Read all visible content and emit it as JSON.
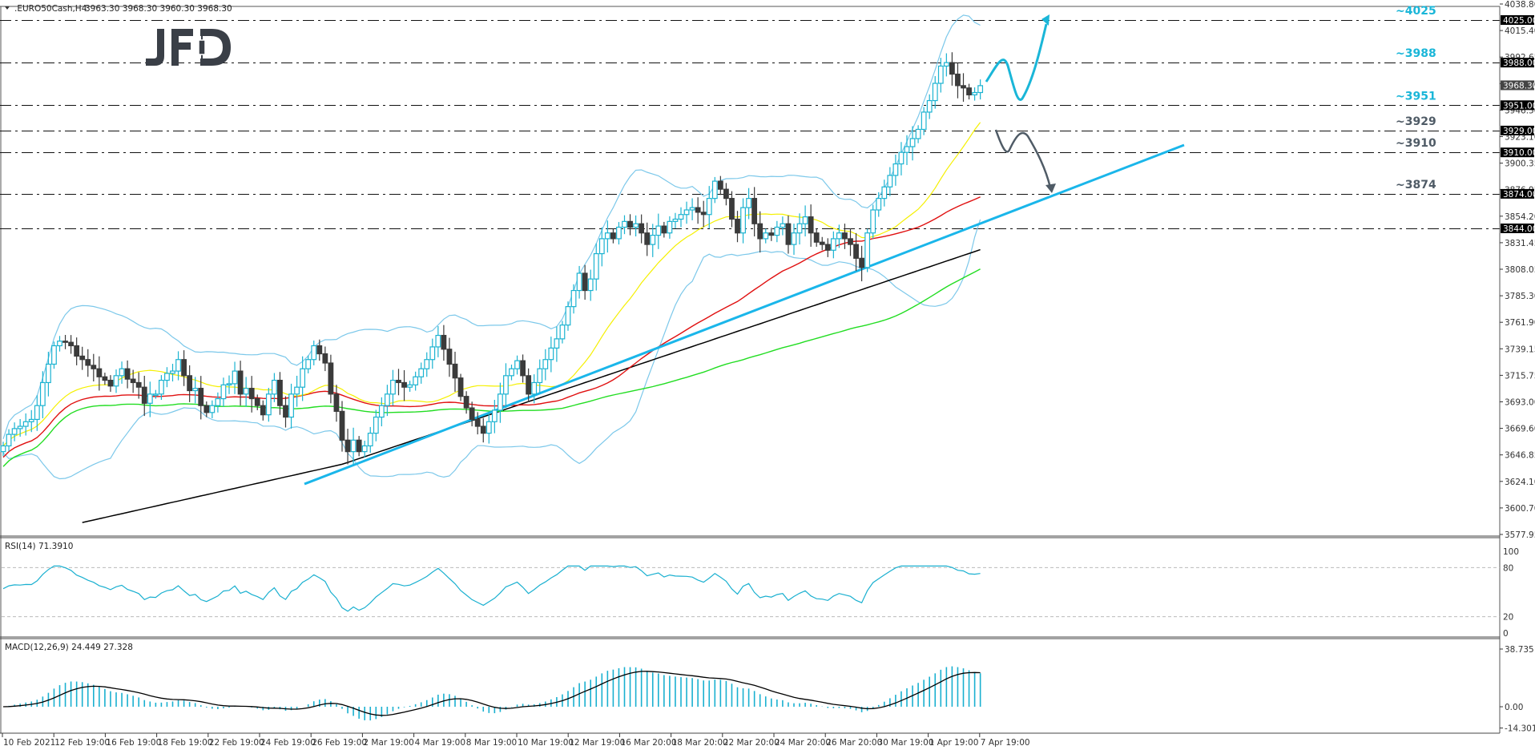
{
  "header": {
    "symbol": ".EURO50Cash,H4",
    "ohlc": "3963.30 3968.30 3960.30 3968.30"
  },
  "logo": "JFD",
  "colors": {
    "bull": "#1bb3d1",
    "bear": "#3b3b3b",
    "ma_fast": "#f5f000",
    "ma_mid": "#e01010",
    "ma_slow": "#22dd22",
    "ma_long": "#000000",
    "bollinger": "#7cc8ea",
    "trendline": "#1ab6ea",
    "bull_scenario": "#1ab6d8",
    "bear_scenario": "#4f5b66",
    "level_bull_text": "#1ab6d8",
    "level_bear_text": "#4f5b66",
    "rsi": "#1ab0d0",
    "macd_hist": "#1ab0d0",
    "macd_signal": "#000000"
  },
  "chart_data": [
    {
      "type": "line",
      "title": ".EURO50Cash,H4 3963.30 3968.30 3960.30 3968.30",
      "subtype": "candlestick",
      "xlabel": "",
      "ylabel": "",
      "ylim": [
        3577.95,
        4038.8
      ],
      "y_ticks": [
        "4038.80",
        "4015.40",
        "3992.65",
        "3968.30",
        "3946.50",
        "3923.10",
        "3900.35",
        "3876.95",
        "3854.20",
        "3831.45",
        "3808.05",
        "3785.30",
        "3761.90",
        "3739.15",
        "3715.75",
        "3693.00",
        "3669.60",
        "3646.85",
        "3624.10",
        "3600.70",
        "3577.95"
      ],
      "x_ticks": [
        "10 Feb 2021",
        "12 Feb 19:00",
        "16 Feb 19:00",
        "18 Feb 19:00",
        "22 Feb 19:00",
        "24 Feb 19:00",
        "26 Feb 19:00",
        "2 Mar 19:00",
        "4 Mar 19:00",
        "8 Mar 19:00",
        "10 Mar 19:00",
        "12 Mar 19:00",
        "16 Mar 20:00",
        "18 Mar 20:00",
        "22 Mar 20:00",
        "24 Mar 20:00",
        "26 Mar 20:00",
        "30 Mar 19:00",
        "1 Apr 19:00",
        "7 Apr 19:00"
      ],
      "current_price": 3968.3,
      "horizontal_levels": [
        {
          "value": 4025.0,
          "label": "~4025",
          "tag": "4025.00",
          "role": "resistance-target"
        },
        {
          "value": 3988.0,
          "label": "~3988",
          "tag": "3988.00",
          "role": "resistance"
        },
        {
          "value": 3951.0,
          "label": "~3951",
          "tag": "3951.00",
          "role": "support"
        },
        {
          "value": 3929.0,
          "label": "~3929",
          "tag": "3929.00",
          "role": "support"
        },
        {
          "value": 3910.0,
          "label": "~3910",
          "tag": "3910.00",
          "role": "support"
        },
        {
          "value": 3874.0,
          "label": "~3874",
          "tag": "3874.00",
          "role": "support"
        },
        {
          "value": 3844.0,
          "label": "",
          "tag": "3844.00",
          "role": "support"
        }
      ],
      "trendline": {
        "from": {
          "x_index": 39,
          "price": 3624
        },
        "to": {
          "x_index": 149,
          "price": 3912
        }
      },
      "closes": [
        3655,
        3665,
        3670,
        3672,
        3676,
        3678,
        3690,
        3710,
        3726,
        3742,
        3746,
        3745,
        3742,
        3733,
        3730,
        3725,
        3722,
        3715,
        3712,
        3707,
        3716,
        3722,
        3713,
        3710,
        3706,
        3692,
        3700,
        3700,
        3712,
        3718,
        3720,
        3730,
        3716,
        3703,
        3705,
        3690,
        3684,
        3690,
        3696,
        3708,
        3709,
        3720,
        3700,
        3705,
        3696,
        3690,
        3682,
        3700,
        3712,
        3690,
        3680,
        3700,
        3706,
        3722,
        3730,
        3742,
        3735,
        3727,
        3700,
        3685,
        3660,
        3650,
        3660,
        3650,
        3655,
        3666,
        3680,
        3690,
        3700,
        3712,
        3710,
        3706,
        3708,
        3715,
        3722,
        3730,
        3741,
        3751,
        3739,
        3726,
        3714,
        3698,
        3688,
        3678,
        3672,
        3666,
        3676,
        3686,
        3700,
        3716,
        3722,
        3729,
        3716,
        3700,
        3710,
        3722,
        3730,
        3740,
        3748,
        3760,
        3776,
        3790,
        3805,
        3790,
        3800,
        3822,
        3835,
        3840,
        3835,
        3845,
        3850,
        3845,
        3848,
        3840,
        3830,
        3838,
        3846,
        3840,
        3850,
        3852,
        3856,
        3860,
        3862,
        3858,
        3856,
        3870,
        3885,
        3878,
        3870,
        3852,
        3840,
        3862,
        3870,
        3848,
        3835,
        3840,
        3838,
        3845,
        3848,
        3830,
        3840,
        3848,
        3854,
        3840,
        3832,
        3830,
        3825,
        3835,
        3840,
        3835,
        3830,
        3818,
        3810,
        3840,
        3860,
        3870,
        3880,
        3890,
        3900,
        3910,
        3915,
        3922,
        3930,
        3945,
        3955,
        3970,
        3985,
        3988,
        3978,
        3968,
        3966,
        3960,
        3962,
        3968
      ]
    },
    {
      "type": "line",
      "title": "RSI(14) 71.3910",
      "ylim": [
        0,
        100
      ],
      "y_ticks": [
        "100",
        "80",
        "20",
        "0"
      ],
      "levels": [
        80,
        20
      ],
      "last_value": 71.391
    },
    {
      "type": "bar",
      "title": "MACD(12,26,9) 24.449 27.328",
      "ylim": [
        -14.301,
        38.735
      ],
      "y_ticks": [
        "38.735",
        "0.00",
        "-14.301"
      ],
      "macd": 24.449,
      "signal": 27.328
    }
  ],
  "panes": {
    "rsi_label": "RSI(14) 71.3910",
    "macd_label": "MACD(12,26,9) 24.449 27.328"
  }
}
